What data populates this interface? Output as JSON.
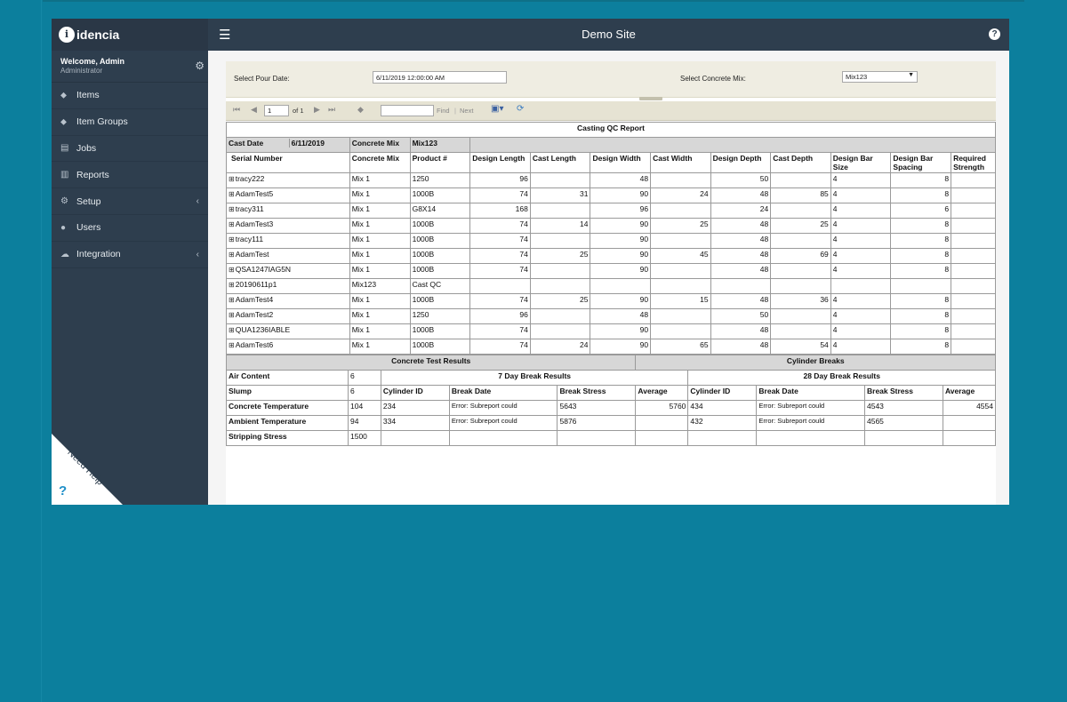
{
  "app": {
    "logo_text": "idencia",
    "site_title": "Demo Site"
  },
  "user": {
    "welcome": "Welcome, Admin",
    "role": "Administrator"
  },
  "nav": [
    {
      "label": "Items",
      "icon": "tag-icon",
      "glyph": "⬥",
      "has_children": false
    },
    {
      "label": "Item Groups",
      "icon": "tags-icon",
      "glyph": "⬥",
      "has_children": false
    },
    {
      "label": "Jobs",
      "icon": "copy-icon",
      "glyph": "▤",
      "has_children": false
    },
    {
      "label": "Reports",
      "icon": "bar-chart-icon",
      "glyph": "▥",
      "has_children": false
    },
    {
      "label": "Setup",
      "icon": "cogs-icon",
      "glyph": "⚙",
      "has_children": true
    },
    {
      "label": "Users",
      "icon": "users-icon",
      "glyph": "●",
      "has_children": false
    },
    {
      "label": "Integration",
      "icon": "cloud-icon",
      "glyph": "☁",
      "has_children": true
    }
  ],
  "need_help": "Need Help",
  "params": {
    "pour_date_label": "Select Pour Date:",
    "pour_date_value": "6/11/2019 12:00:00 AM",
    "mix_label": "Select Concrete Mix:",
    "mix_value": "Mix123"
  },
  "toolbar": {
    "page": "1",
    "of": "of 1",
    "find": "Find",
    "sep": "|",
    "next": "Next"
  },
  "report": {
    "title": "Casting QC Report",
    "cast_date_label": "Cast Date",
    "cast_date_value": "6/11/2019",
    "concrete_mix_label": "Concrete Mix",
    "concrete_mix_value": "Mix123",
    "columns": [
      "Serial Number",
      "Concrete Mix",
      "Product #",
      "Design Length",
      "Cast Length",
      "Design Width",
      "Cast Width",
      "Design Depth",
      "Cast Depth",
      "Design Bar Size",
      "Design Bar Spacing",
      "Required Strength"
    ],
    "rows": [
      [
        "tracy222",
        "Mix 1",
        "1250",
        "96",
        "",
        "48",
        "",
        "50",
        "",
        "4",
        "8",
        ""
      ],
      [
        "AdamTest5",
        "Mix 1",
        "1000B",
        "74",
        "31",
        "90",
        "24",
        "48",
        "85",
        "4",
        "8",
        ""
      ],
      [
        "tracy311",
        "Mix 1",
        "G8X14",
        "168",
        "",
        "96",
        "",
        "24",
        "",
        "4",
        "6",
        ""
      ],
      [
        "AdamTest3",
        "Mix 1",
        "1000B",
        "74",
        "14",
        "90",
        "25",
        "48",
        "25",
        "4",
        "8",
        ""
      ],
      [
        "tracy111",
        "Mix 1",
        "1000B",
        "74",
        "",
        "90",
        "",
        "48",
        "",
        "4",
        "8",
        ""
      ],
      [
        "AdamTest",
        "Mix 1",
        "1000B",
        "74",
        "25",
        "90",
        "45",
        "48",
        "69",
        "4",
        "8",
        ""
      ],
      [
        "QSA1247IAG5N",
        "Mix 1",
        "1000B",
        "74",
        "",
        "90",
        "",
        "48",
        "",
        "4",
        "8",
        ""
      ],
      [
        "20190611p1",
        "Mix123",
        "Cast QC",
        "",
        "",
        "",
        "",
        "",
        "",
        "",
        "",
        ""
      ],
      [
        "AdamTest4",
        "Mix 1",
        "1000B",
        "74",
        "25",
        "90",
        "15",
        "48",
        "36",
        "4",
        "8",
        ""
      ],
      [
        "AdamTest2",
        "Mix 1",
        "1250",
        "96",
        "",
        "48",
        "",
        "50",
        "",
        "4",
        "8",
        ""
      ],
      [
        "QUA1236IABLE",
        "Mix 1",
        "1000B",
        "74",
        "",
        "90",
        "",
        "48",
        "",
        "4",
        "8",
        ""
      ],
      [
        "AdamTest6",
        "Mix 1",
        "1000B",
        "74",
        "24",
        "90",
        "65",
        "48",
        "54",
        "4",
        "8",
        ""
      ]
    ],
    "concrete_test_title": "Concrete Test Results",
    "cylinder_breaks_title": "Cylinder Breaks",
    "seven_day_title": "7 Day Break Results",
    "twenty_eight_day_title": "28 Day Break Results",
    "break_cols": [
      "Cylinder ID",
      "Break Date",
      "Break Stress",
      "Average"
    ],
    "tests": [
      {
        "label": "Air Content",
        "value": "6"
      },
      {
        "label": "Slump",
        "value": "6"
      },
      {
        "label": "Concrete Temperature",
        "value": "104"
      },
      {
        "label": "Ambient Temperature",
        "value": "94"
      },
      {
        "label": "Stripping Stress",
        "value": "1500"
      }
    ],
    "seven_day": [
      {
        "id": "234",
        "date": "Error: Subreport could",
        "stress": "5643",
        "avg": "5760"
      },
      {
        "id": "334",
        "date": "Error: Subreport could",
        "stress": "5876",
        "avg": ""
      }
    ],
    "twenty_eight_day": [
      {
        "id": "434",
        "date": "Error: Subreport could",
        "stress": "4543",
        "avg": "4554"
      },
      {
        "id": "432",
        "date": "Error: Subreport could",
        "stress": "4565",
        "avg": ""
      }
    ]
  }
}
